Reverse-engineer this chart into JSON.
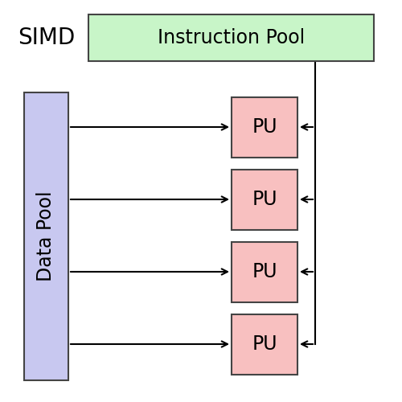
{
  "title": "SIMD",
  "instruction_pool_label": "Instruction Pool",
  "data_pool_label": "Data Pool",
  "pu_label": "PU",
  "num_pu": 4,
  "instruction_pool_color": "#c8f5c8",
  "instruction_pool_edge_color": "#444444",
  "data_pool_color": "#c8c8f0",
  "data_pool_edge_color": "#444444",
  "pu_color": "#f8c0c0",
  "pu_edge_color": "#444444",
  "bg_color": "#ffffff",
  "simd_fontsize": 20,
  "pool_fontsize": 17,
  "pu_fontsize": 17,
  "line_lw": 1.5
}
